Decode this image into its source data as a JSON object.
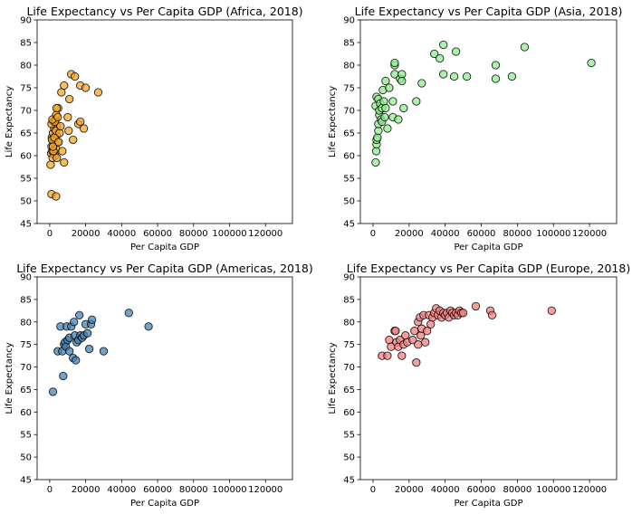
{
  "chart_data": [
    {
      "type": "scatter",
      "title": "Life Expectancy vs Per Capita GDP (Africa, 2018)",
      "xlabel": "Per Capita GDP",
      "ylabel": "Life Expectancy",
      "xlim": [
        -7000,
        135000
      ],
      "ylim": [
        45,
        90
      ],
      "xticks": [
        0,
        20000,
        40000,
        60000,
        80000,
        100000,
        120000
      ],
      "yticks": [
        45,
        50,
        55,
        60,
        65,
        70,
        75,
        80,
        85,
        90
      ],
      "grid": false,
      "color": "#f5a623",
      "points": [
        [
          500,
          58
        ],
        [
          800,
          60.5
        ],
        [
          1000,
          62
        ],
        [
          1200,
          64
        ],
        [
          1500,
          61
        ],
        [
          1800,
          65
        ],
        [
          2000,
          67.5
        ],
        [
          2200,
          63
        ],
        [
          2500,
          66
        ],
        [
          2700,
          62.5
        ],
        [
          3000,
          60
        ],
        [
          3200,
          68
        ],
        [
          3500,
          61.5
        ],
        [
          3800,
          64.5
        ],
        [
          4000,
          66.5
        ],
        [
          4200,
          63
        ],
        [
          1000,
          67
        ],
        [
          1300,
          63.5
        ],
        [
          1600,
          59.5
        ],
        [
          2100,
          61
        ],
        [
          2600,
          64
        ],
        [
          3400,
          65.5
        ],
        [
          1800,
          62
        ],
        [
          2900,
          67.5
        ],
        [
          1500,
          68
        ],
        [
          3600,
          69
        ],
        [
          4500,
          68.5
        ],
        [
          4700,
          70.5
        ],
        [
          3800,
          70.5
        ],
        [
          4000,
          59.5
        ],
        [
          5000,
          63
        ],
        [
          5500,
          65
        ],
        [
          6000,
          66.5
        ],
        [
          6500,
          74
        ],
        [
          7000,
          61
        ],
        [
          8000,
          58.5
        ],
        [
          8000,
          75.5
        ],
        [
          10000,
          68.5
        ],
        [
          10500,
          65.5
        ],
        [
          11000,
          72.5
        ],
        [
          12000,
          78
        ],
        [
          13000,
          63.5
        ],
        [
          14000,
          77.5
        ],
        [
          16000,
          67
        ],
        [
          17000,
          67.5
        ],
        [
          17000,
          75.5
        ],
        [
          19000,
          66
        ],
        [
          20000,
          75
        ],
        [
          27000,
          74
        ],
        [
          1000,
          51.5
        ],
        [
          3500,
          51
        ]
      ]
    },
    {
      "type": "scatter",
      "title": "Life Expectancy vs Per Capita GDP (Asia, 2018)",
      "xlabel": "Per Capita GDP",
      "ylabel": "Life Expectancy",
      "xlim": [
        -7000,
        135000
      ],
      "ylim": [
        45,
        90
      ],
      "xticks": [
        0,
        20000,
        40000,
        60000,
        80000,
        100000,
        120000
      ],
      "yticks": [
        45,
        50,
        55,
        60,
        65,
        70,
        75,
        80,
        85,
        90
      ],
      "grid": false,
      "color": "#90ee90",
      "points": [
        [
          1500,
          58.5
        ],
        [
          1800,
          61
        ],
        [
          2000,
          62.5
        ],
        [
          2000,
          63.5
        ],
        [
          2500,
          64
        ],
        [
          3000,
          65.5
        ],
        [
          3000,
          67
        ],
        [
          3500,
          69
        ],
        [
          1500,
          71
        ],
        [
          2000,
          73
        ],
        [
          3000,
          72.5
        ],
        [
          3500,
          70
        ],
        [
          4000,
          71.5
        ],
        [
          4500,
          68
        ],
        [
          5000,
          67.5
        ],
        [
          5000,
          70.5
        ],
        [
          5500,
          74.5
        ],
        [
          6000,
          72
        ],
        [
          6500,
          68.5
        ],
        [
          7000,
          70.5
        ],
        [
          7000,
          76.5
        ],
        [
          8000,
          66
        ],
        [
          9000,
          75
        ],
        [
          11000,
          72
        ],
        [
          11000,
          68.5
        ],
        [
          12000,
          80
        ],
        [
          12000,
          80.5
        ],
        [
          12000,
          78
        ],
        [
          14000,
          68
        ],
        [
          15000,
          77
        ],
        [
          16000,
          78
        ],
        [
          16000,
          76.5
        ],
        [
          17000,
          70.5
        ],
        [
          24000,
          72
        ],
        [
          27000,
          76
        ],
        [
          34000,
          82.5
        ],
        [
          37000,
          81.5
        ],
        [
          39000,
          78
        ],
        [
          39000,
          84.5
        ],
        [
          45000,
          77.5
        ],
        [
          46000,
          83
        ],
        [
          52000,
          77.5
        ],
        [
          68000,
          80
        ],
        [
          68000,
          77
        ],
        [
          77000,
          77.5
        ],
        [
          84000,
          84
        ],
        [
          121000,
          80.5
        ]
      ]
    },
    {
      "type": "scatter",
      "title": "Life Expectancy vs Per Capita GDP (Americas, 2018)",
      "xlabel": "Per Capita GDP",
      "ylabel": "Life Expectancy",
      "xlim": [
        -7000,
        135000
      ],
      "ylim": [
        45,
        90
      ],
      "xticks": [
        0,
        20000,
        40000,
        60000,
        80000,
        100000,
        120000
      ],
      "yticks": [
        45,
        50,
        55,
        60,
        65,
        70,
        75,
        80,
        85,
        90
      ],
      "grid": false,
      "color": "#4682b4",
      "points": [
        [
          1800,
          64.5
        ],
        [
          4500,
          73.5
        ],
        [
          6000,
          79
        ],
        [
          7000,
          73.5
        ],
        [
          7500,
          68
        ],
        [
          8000,
          75
        ],
        [
          8500,
          75.5
        ],
        [
          9000,
          74.5
        ],
        [
          9500,
          79
        ],
        [
          10000,
          76
        ],
        [
          11000,
          76.5
        ],
        [
          11000,
          73.5
        ],
        [
          12000,
          79
        ],
        [
          13000,
          72
        ],
        [
          13500,
          80
        ],
        [
          14000,
          77
        ],
        [
          15000,
          75.5
        ],
        [
          14500,
          71.5
        ],
        [
          16000,
          76
        ],
        [
          16500,
          81.5
        ],
        [
          17000,
          77
        ],
        [
          18000,
          76.5
        ],
        [
          19000,
          77
        ],
        [
          20000,
          79.5
        ],
        [
          21000,
          77.5
        ],
        [
          22000,
          74
        ],
        [
          23000,
          79.5
        ],
        [
          23500,
          80.5
        ],
        [
          30000,
          73.5
        ],
        [
          44000,
          82
        ],
        [
          55000,
          79
        ]
      ]
    },
    {
      "type": "scatter",
      "title": "Life Expectancy vs Per Capita GDP (Europe, 2018)",
      "xlabel": "Per Capita GDP",
      "ylabel": "Life Expectancy",
      "xlim": [
        -7000,
        135000
      ],
      "ylim": [
        45,
        90
      ],
      "xticks": [
        0,
        20000,
        40000,
        60000,
        80000,
        100000,
        120000
      ],
      "yticks": [
        45,
        50,
        55,
        60,
        65,
        70,
        75,
        80,
        85,
        90
      ],
      "grid": false,
      "color": "#f08080",
      "points": [
        [
          5000,
          72.5
        ],
        [
          8000,
          72.5
        ],
        [
          9000,
          76
        ],
        [
          10000,
          74.5
        ],
        [
          12000,
          78
        ],
        [
          12500,
          78
        ],
        [
          13000,
          75.5
        ],
        [
          14000,
          74.5
        ],
        [
          15000,
          76
        ],
        [
          16000,
          72.5
        ],
        [
          17000,
          75
        ],
        [
          18000,
          77
        ],
        [
          19000,
          75.5
        ],
        [
          22000,
          76
        ],
        [
          23000,
          78
        ],
        [
          24000,
          71
        ],
        [
          25000,
          80
        ],
        [
          25000,
          75
        ],
        [
          26000,
          81
        ],
        [
          26500,
          77
        ],
        [
          27000,
          78.5
        ],
        [
          28000,
          81.5
        ],
        [
          29000,
          75.5
        ],
        [
          30000,
          78
        ],
        [
          31000,
          81.5
        ],
        [
          32000,
          79.5
        ],
        [
          33000,
          81
        ],
        [
          34000,
          82
        ],
        [
          35000,
          83
        ],
        [
          36000,
          81.5
        ],
        [
          37000,
          82.5
        ],
        [
          38000,
          81
        ],
        [
          39000,
          82
        ],
        [
          40000,
          81.5
        ],
        [
          41000,
          82
        ],
        [
          42000,
          81
        ],
        [
          43000,
          82.5
        ],
        [
          44000,
          82
        ],
        [
          45000,
          81.5
        ],
        [
          46000,
          82
        ],
        [
          47000,
          81.5
        ],
        [
          48000,
          82.5
        ],
        [
          49000,
          82
        ],
        [
          50000,
          82
        ],
        [
          57000,
          83.5
        ],
        [
          65000,
          82.5
        ],
        [
          66000,
          81.5
        ],
        [
          99000,
          82.5
        ]
      ]
    }
  ]
}
